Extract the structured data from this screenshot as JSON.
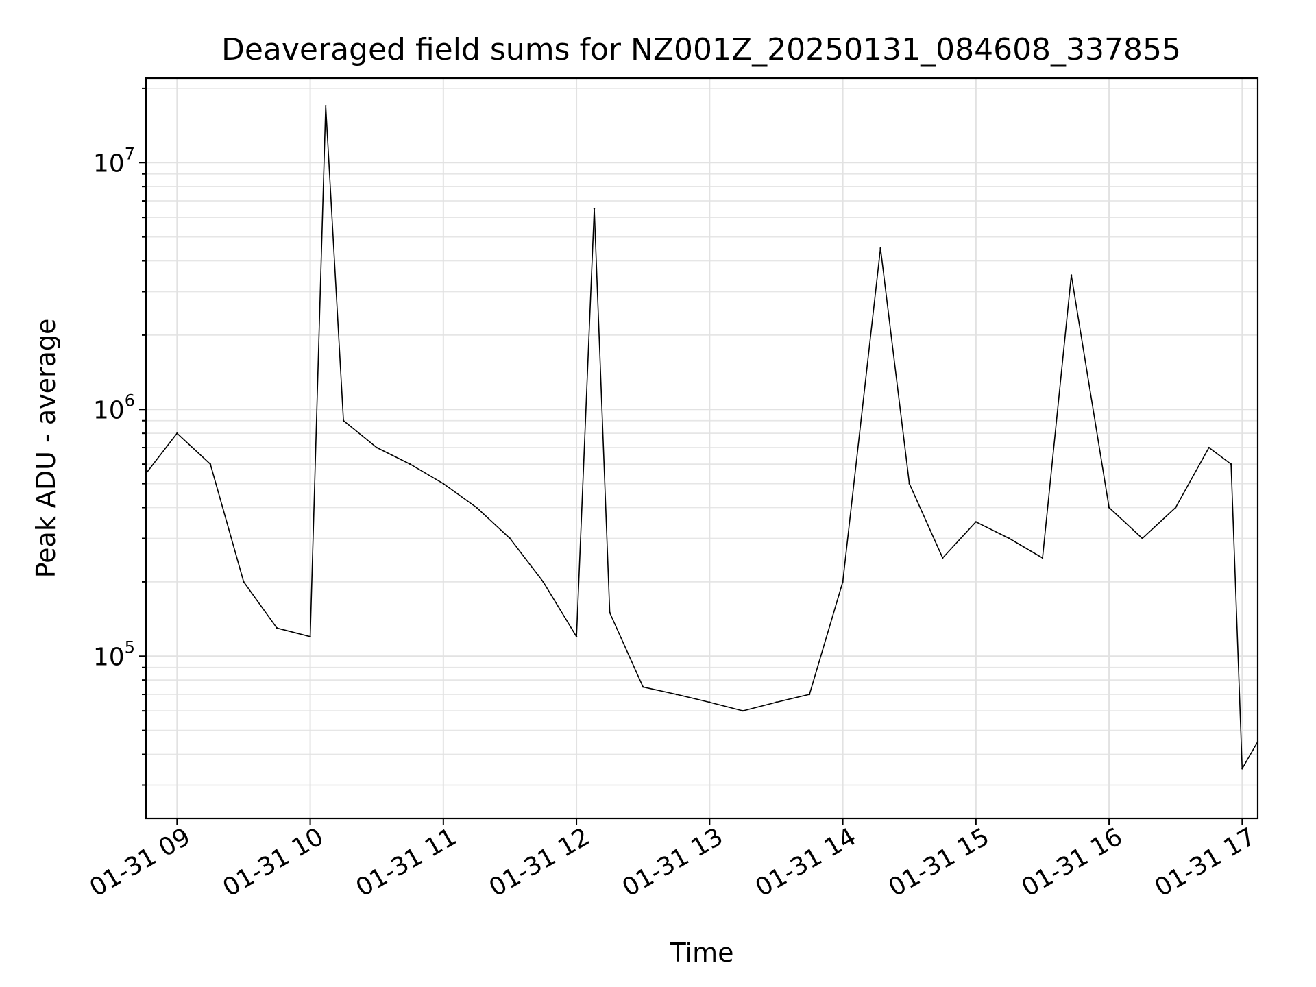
{
  "chart_data": {
    "type": "line",
    "title": "Deaveraged field sums for NZ001Z_20250131_084608_337855",
    "xlabel": "Time",
    "ylabel": "Peak ADU - average",
    "yscale": "log",
    "ylim": [
      22000,
      22000000
    ],
    "xlim": [
      "2025-01-31 08:46",
      "2025-01-31 17:07"
    ],
    "grid": true,
    "x_ticks": [
      "01-31 09",
      "01-31 10",
      "01-31 11",
      "01-31 12",
      "01-31 13",
      "01-31 14",
      "01-31 15",
      "01-31 16",
      "01-31 17"
    ],
    "y_ticks": [
      {
        "base": "10",
        "exp": "5",
        "value": 100000
      },
      {
        "base": "10",
        "exp": "6",
        "value": 1000000
      },
      {
        "base": "10",
        "exp": "7",
        "value": 10000000
      }
    ],
    "line_color": "#000000",
    "series": [
      {
        "x": [
          "2025-01-31 08:46",
          "2025-01-31 09:00",
          "2025-01-31 09:15",
          "2025-01-31 09:30",
          "2025-01-31 09:45",
          "2025-01-31 10:00",
          "2025-01-31 10:07",
          "2025-01-31 10:15",
          "2025-01-31 10:30",
          "2025-01-31 10:45",
          "2025-01-31 11:00",
          "2025-01-31 11:15",
          "2025-01-31 11:30",
          "2025-01-31 11:45",
          "2025-01-31 12:00",
          "2025-01-31 12:08",
          "2025-01-31 12:15",
          "2025-01-31 12:30",
          "2025-01-31 12:45",
          "2025-01-31 13:00",
          "2025-01-31 13:15",
          "2025-01-31 13:30",
          "2025-01-31 13:45",
          "2025-01-31 14:00",
          "2025-01-31 14:17",
          "2025-01-31 14:30",
          "2025-01-31 14:45",
          "2025-01-31 15:00",
          "2025-01-31 15:15",
          "2025-01-31 15:30",
          "2025-01-31 15:43",
          "2025-01-31 16:00",
          "2025-01-31 16:15",
          "2025-01-31 16:30",
          "2025-01-31 16:45",
          "2025-01-31 16:55",
          "2025-01-31 17:00",
          "2025-01-31 17:07"
        ],
        "values": [
          550000,
          800000,
          600000,
          200000,
          130000,
          120000,
          17000000,
          900000,
          700000,
          600000,
          500000,
          400000,
          300000,
          200000,
          120000,
          6500000,
          150000,
          75000,
          70000,
          65000,
          60000,
          65000,
          70000,
          200000,
          4500000,
          500000,
          250000,
          350000,
          300000,
          250000,
          3500000,
          400000,
          300000,
          400000,
          700000,
          600000,
          35000,
          45000
        ]
      }
    ]
  }
}
